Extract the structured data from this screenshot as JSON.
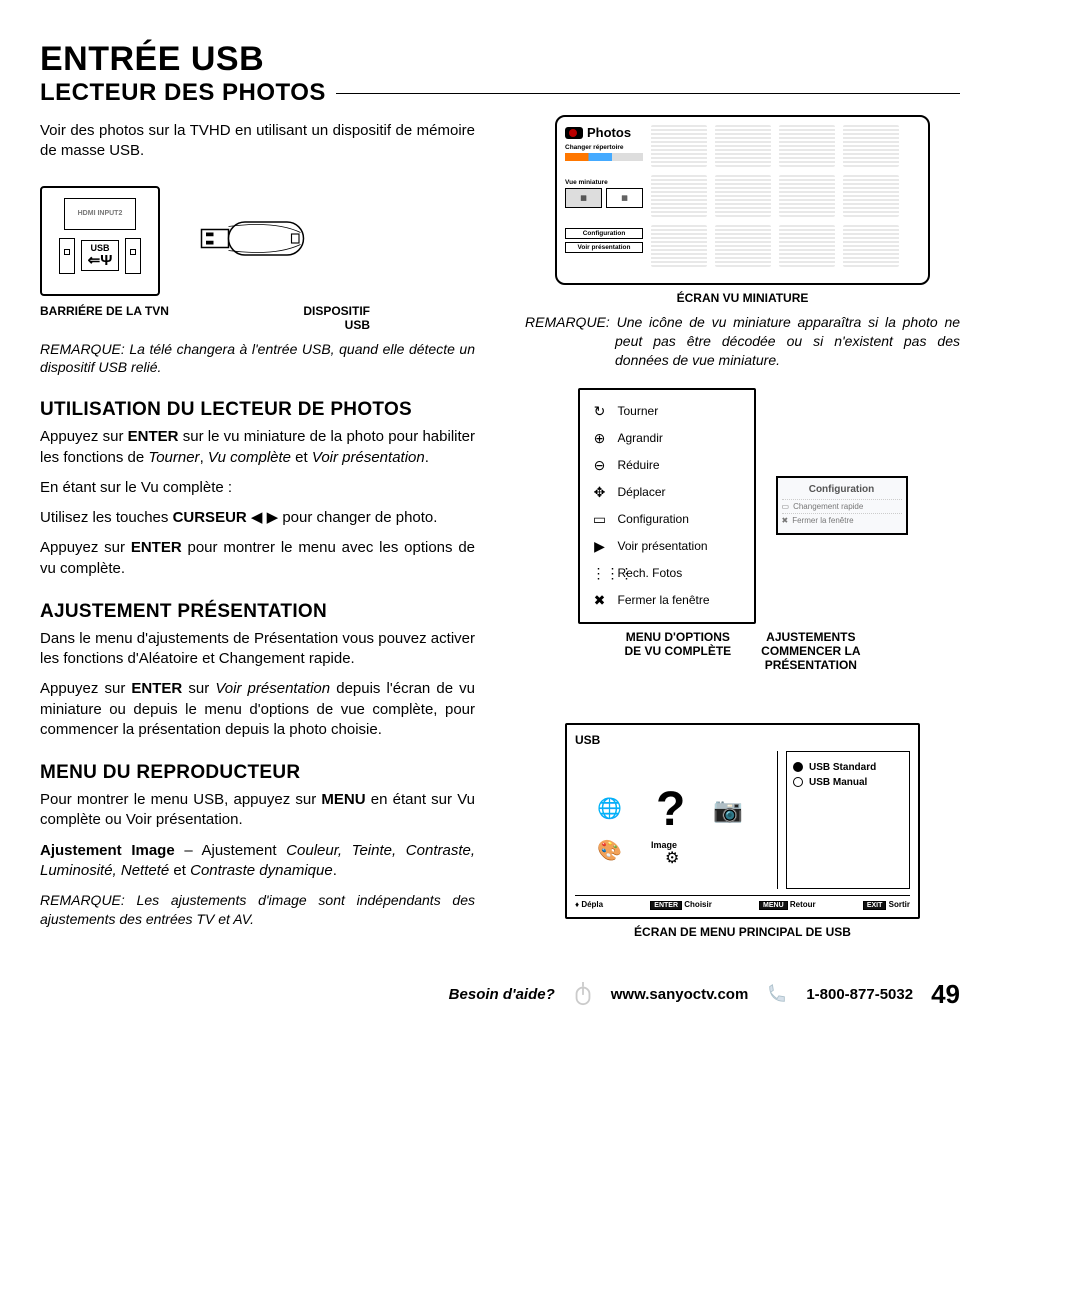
{
  "title": "ENTRÉE USB",
  "subtitle": "LECTEUR DES PHOTOS",
  "intro": "Voir des photos sur la TVHD en utilisant un dispositif de mémoire de masse USB.",
  "tv_diagram": {
    "port_hdmi": "HDMI INPUT2",
    "port_usb": "USB",
    "label_tv": "BARRIÉRE DE LA TVN",
    "label_device_1": "DISPOSITIF",
    "label_device_2": "USB"
  },
  "remarque1_label": "REMARQUE:",
  "remarque1": "La télé changera à l'entrée USB, quand elle détecte un dispositif USB relié.",
  "section_util": "UTILISATION DU LECTEUR DE PHOTOS",
  "util_p1a": "Appuyez sur ",
  "util_p1b": "ENTER",
  "util_p1c": " sur le vu miniature de la photo pour habiliter les fonctions de ",
  "util_p1d": "Tourner",
  "util_p1e": ", ",
  "util_p1f": "Vu complète",
  "util_p1g": " et ",
  "util_p1h": "Voir présentation",
  "util_p1i": ".",
  "util_p2": "En étant sur le Vu complète :",
  "util_p3a": "Utilisez les touches ",
  "util_p3b": "CURSEUR",
  "util_p3c": " ◀ ▶ pour changer de photo.",
  "util_p4a": "Appuyez sur ",
  "util_p4b": "ENTER",
  "util_p4c": " pour montrer le menu avec les options de vu complète.",
  "section_adj": "AJUSTEMENT PRÉSENTATION",
  "adj_p1": "Dans le menu d'ajustements de Présentation vous pouvez activer les fonctions d'Aléatoire et Changement rapide.",
  "adj_p2a": "Appuyez sur ",
  "adj_p2b": "ENTER",
  "adj_p2c": " sur ",
  "adj_p2d": "Voir présentation",
  "adj_p2e": " depuis l'écran de vu miniature ou depuis le menu d'options de vue complète, pour commencer la présentation depuis la photo choisie.",
  "section_menu": "MENU DU REPRODUCTEUR",
  "menu_p1a": "Pour montrer le menu USB, appuyez sur ",
  "menu_p1b": "MENU",
  "menu_p1c": " en étant sur Vu complète ou Voir présentation.",
  "menu_p2a": "Ajustement Image",
  "menu_p2b": "  –  Ajustement ",
  "menu_p2c": "Couleur, Teinte, Contraste, Luminosité, Netteté",
  "menu_p2d": " et ",
  "menu_p2e": "Contraste dynamique",
  "menu_p2f": ".",
  "remarque2": "Les ajustements d'image sont indépendants des ajustements des entrées TV et AV.",
  "thumb": {
    "photos": "Photos",
    "changer": "Changer répertoire",
    "vue_min": "Vue miniature",
    "config": "Configuration",
    "voir": "Voir présentation",
    "caption": "ÉCRAN VU MINIATURE"
  },
  "remarque3": "Une icône de vu miniature apparaîtra si la photo ne peut pas être décodée ou si n'existent pas des données de vue miniature.",
  "options": {
    "items": [
      {
        "icon": "↻",
        "label": "Tourner"
      },
      {
        "icon": "⊕",
        "label": "Agrandir"
      },
      {
        "icon": "⊖",
        "label": "Réduire"
      },
      {
        "icon": "✥",
        "label": "Déplacer"
      },
      {
        "icon": "▭",
        "label": "Configuration"
      },
      {
        "icon": "▶",
        "label": "Voir présentation"
      },
      {
        "icon": "⋮⋮⋮",
        "label": "Rech. Fotos"
      },
      {
        "icon": "✖",
        "label": "Fermer la fenêtre"
      }
    ],
    "small_title": "Configuration",
    "small_r1": "Changement rapide",
    "small_r2": "Fermer la fenêtre",
    "cap_left_1": "MENU D'OPTIONS",
    "cap_left_2": "DE VU COMPLÈTE",
    "cap_right_1": "AJUSTEMENTS",
    "cap_right_2": "COMMENCER LA",
    "cap_right_3": "PRÉSENTATION"
  },
  "usb_menu": {
    "head": "USB",
    "image_label": "Image",
    "radio1": "USB Standard",
    "radio2": "USB Manual",
    "f_depla": "Dépla",
    "f_enter": "ENTER",
    "f_choisir": "Choisir",
    "f_menu": "MENU",
    "f_retour": "Retour",
    "f_exit": "EXIT",
    "f_sortir": "Sortir",
    "caption": "ÉCRAN DE MENU PRINCIPAL DE USB"
  },
  "footer": {
    "help": "Besoin d'aide?",
    "url": "www.sanyoctv.com",
    "phone": "1-800-877-5032",
    "page": "49"
  },
  "colors": {
    "text": "#000000",
    "bg": "#ffffff"
  }
}
